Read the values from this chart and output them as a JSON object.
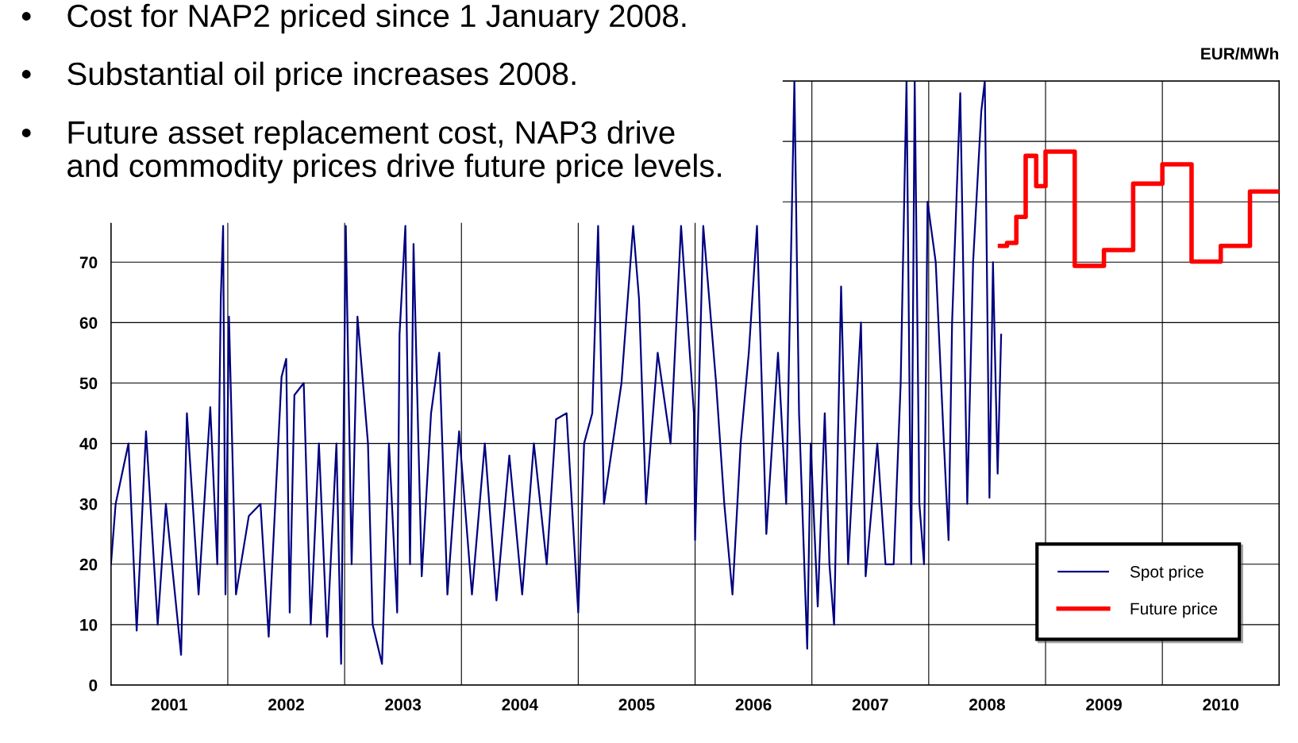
{
  "chart_data": {
    "type": "line",
    "ylabel": "EUR/MWh",
    "annotations": [
      "•Cost for NAP2 priced since 1 January 2008.",
      "•Substantial oil price increases 2008.",
      "•Future asset replacement cost, NAP3 drive\nand commodity prices drive future price levels."
    ],
    "xlim": [
      2001,
      2011
    ],
    "xticks": [
      {
        "value": 2001,
        "label": null
      },
      {
        "value": 2001.5,
        "label": "2001"
      },
      {
        "value": 2002,
        "label": null
      },
      {
        "value": 2002.5,
        "label": "2002"
      },
      {
        "value": 2003,
        "label": null
      },
      {
        "value": 2003.5,
        "label": "2003"
      },
      {
        "value": 2004,
        "label": null
      },
      {
        "value": 2004.5,
        "label": "2004"
      },
      {
        "value": 2005,
        "label": null
      },
      {
        "value": 2005.5,
        "label": "2005"
      },
      {
        "value": 2006,
        "label": null
      },
      {
        "value": 2006.5,
        "label": "2006"
      },
      {
        "value": 2007,
        "label": null
      },
      {
        "value": 2007.5,
        "label": "2007"
      },
      {
        "value": 2008,
        "label": null
      },
      {
        "value": 2008.5,
        "label": "2008"
      },
      {
        "value": 2009,
        "label": null
      },
      {
        "value": 2009.5,
        "label": "2009"
      },
      {
        "value": 2010,
        "label": null
      },
      {
        "value": 2010.5,
        "label": "2010"
      },
      {
        "value": 2011,
        "label": null
      }
    ],
    "ylim": [
      0,
      100
    ],
    "yticks": [
      0,
      10,
      20,
      30,
      40,
      50,
      60,
      70,
      {
        "value": 80,
        "label": null
      },
      {
        "value": 90,
        "label": null
      },
      {
        "value": 100,
        "label": null
      }
    ],
    "grid": true,
    "legend": "bottom right",
    "series": [
      {
        "name": "Spot price",
        "color": "#000080",
        "x": [
          2001.0,
          2001.04,
          2001.15,
          2001.22,
          2001.3,
          2001.4,
          2001.47,
          2001.6,
          2001.65,
          2001.75,
          2001.85,
          2001.91,
          2001.94,
          2001.96,
          2001.98,
          2002.01,
          2002.07,
          2002.18,
          2002.28,
          2002.35,
          2002.46,
          2002.5,
          2002.53,
          2002.57,
          2002.65,
          2002.71,
          2002.78,
          2002.85,
          2002.93,
          2002.97,
          2003.01,
          2003.06,
          2003.11,
          2003.2,
          2003.24,
          2003.32,
          2003.38,
          2003.45,
          2003.47,
          2003.52,
          2003.56,
          2003.59,
          2003.66,
          2003.74,
          2003.81,
          2003.88,
          2003.98,
          2004.09,
          2004.2,
          2004.3,
          2004.41,
          2004.52,
          2004.62,
          2004.73,
          2004.81,
          2004.9,
          2005.0,
          2005.05,
          2005.12,
          2005.17,
          2005.22,
          2005.37,
          2005.47,
          2005.52,
          2005.58,
          2005.68,
          2005.79,
          2005.88,
          2005.99,
          2006.0,
          2006.07,
          2006.18,
          2006.25,
          2006.32,
          2006.39,
          2006.46,
          2006.53,
          2006.61,
          2006.71,
          2006.78,
          2006.85,
          2006.89,
          2006.96,
          2006.99,
          2007.05,
          2007.11,
          2007.15,
          2007.19,
          2007.25,
          2007.31,
          2007.42,
          2007.46,
          2007.56,
          2007.63,
          2007.7,
          2007.76,
          2007.81,
          2007.85,
          2007.88,
          2007.92,
          2007.96,
          2007.99,
          2008.06,
          2008.13,
          2008.17,
          2008.2,
          2008.27,
          2008.33,
          2008.38,
          2008.45,
          2008.48,
          2008.52,
          2008.55,
          2008.59,
          2008.62
        ],
        "values": [
          20,
          30,
          40,
          9,
          42,
          10,
          30,
          5,
          45,
          15,
          46,
          20,
          64,
          76,
          15,
          61,
          15,
          28,
          30,
          8,
          51,
          54,
          12,
          48,
          50,
          10,
          40,
          8,
          40,
          3.5,
          76,
          20,
          61,
          40,
          10,
          3.5,
          40,
          12,
          58,
          76,
          20,
          73,
          18,
          45,
          55,
          15,
          42,
          15,
          40,
          14,
          38,
          15,
          40,
          20,
          44,
          45,
          12,
          40,
          45,
          76,
          30,
          50,
          76,
          64,
          30,
          55,
          40,
          76,
          45,
          24,
          76,
          50,
          30,
          15,
          40,
          55,
          76,
          25,
          55,
          30,
          100,
          45,
          6,
          40,
          13,
          45,
          20,
          10,
          66,
          20,
          60,
          18,
          40,
          20,
          20,
          50,
          100,
          20,
          100,
          30,
          20,
          80,
          70,
          40,
          24,
          60,
          98,
          30,
          70,
          95,
          100,
          31,
          70,
          35,
          58
        ]
      },
      {
        "name": "Future price",
        "type": "step",
        "color": "#ff0000",
        "x": [
          2008.61,
          2008.67,
          2008.75,
          2008.83,
          2008.92,
          2009.0,
          2009.25,
          2009.5,
          2009.75,
          2010.0,
          2010.25,
          2010.5,
          2010.75,
          2011.0
        ],
        "values": [
          72.7,
          73.2,
          77.5,
          87.6,
          82.6,
          88.3,
          69.4,
          72.0,
          83.0,
          86.2,
          70.1,
          72.7,
          81.7,
          81.7
        ]
      }
    ]
  }
}
